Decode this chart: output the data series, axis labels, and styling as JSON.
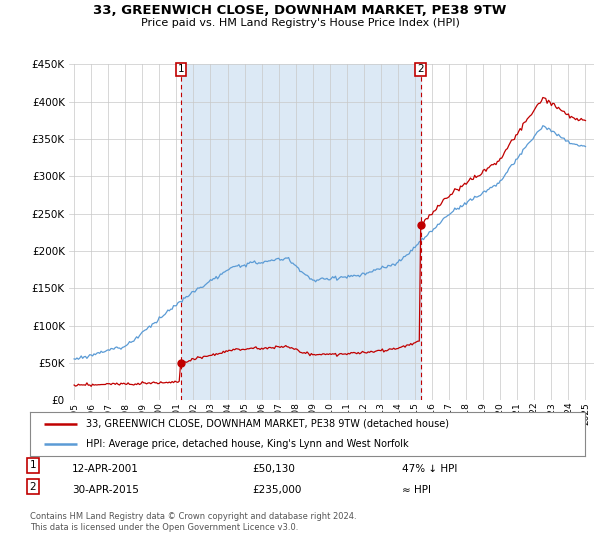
{
  "title": "33, GREENWICH CLOSE, DOWNHAM MARKET, PE38 9TW",
  "subtitle": "Price paid vs. HM Land Registry's House Price Index (HPI)",
  "legend_line1": "33, GREENWICH CLOSE, DOWNHAM MARKET, PE38 9TW (detached house)",
  "legend_line2": "HPI: Average price, detached house, King's Lynn and West Norfolk",
  "annotation1_label": "1",
  "annotation1_date": "12-APR-2001",
  "annotation1_price": "£50,130",
  "annotation1_hpi": "47% ↓ HPI",
  "annotation2_label": "2",
  "annotation2_date": "30-APR-2015",
  "annotation2_price": "£235,000",
  "annotation2_hpi": "≈ HPI",
  "footnote": "Contains HM Land Registry data © Crown copyright and database right 2024.\nThis data is licensed under the Open Government Licence v3.0.",
  "hpi_color": "#5b9bd5",
  "price_color": "#c00000",
  "annotation_color": "#c00000",
  "shade_color": "#dce9f5",
  "bg_color": "#ffffff",
  "grid_color": "#c8c8c8",
  "ylim": [
    0,
    450000
  ],
  "yticks": [
    0,
    50000,
    100000,
    150000,
    200000,
    250000,
    300000,
    350000,
    400000,
    450000
  ],
  "sale1_x": 2001.28,
  "sale1_y": 50130,
  "sale2_x": 2015.33,
  "sale2_y": 235000,
  "xmin": 1995,
  "xmax": 2025
}
